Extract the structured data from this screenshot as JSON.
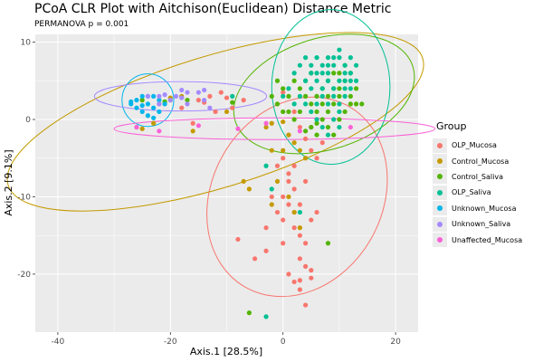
{
  "chart_data": {
    "type": "scatter",
    "title": "PCoA CLR Plot with Aitchison(Euclidean) Distance Metric",
    "subtitle": "PERMANOVA p = 0.001",
    "xlabel": "Axis.1   [28.5%]",
    "ylabel": "Axis.2   [9.1%]",
    "xlim": [
      -44,
      24
    ],
    "ylim": [
      -27.5,
      11
    ],
    "xticks": [
      -40,
      -20,
      0,
      20
    ],
    "yticks": [
      -20,
      -10,
      0,
      10
    ],
    "xtick_labels": [
      "-40",
      "-20",
      "0",
      "20"
    ],
    "ytick_labels": [
      "-20",
      "-10",
      "0",
      "10"
    ],
    "legend_title": "Group",
    "legend_position": "right",
    "series": [
      {
        "name": "OLP_Mucosa",
        "color": "#F8766D",
        "ellipse": {
          "cx": 2.5,
          "cy": -10,
          "rx": 18.5,
          "ry": 11,
          "angle": 120
        },
        "points": [
          [
            -18,
            1.5
          ],
          [
            -15,
            2.5
          ],
          [
            -14,
            2.2
          ],
          [
            -11,
            3.5
          ],
          [
            -9,
            1.5
          ],
          [
            -7,
            2.5
          ],
          [
            -12,
            1
          ],
          [
            -16,
            -0.5
          ],
          [
            -13,
            3
          ],
          [
            -10,
            2.8
          ],
          [
            0,
            3.5
          ],
          [
            1,
            -2
          ],
          [
            2,
            1
          ],
          [
            3,
            -1
          ],
          [
            4,
            -2.5
          ],
          [
            5,
            -1
          ],
          [
            0,
            -5
          ],
          [
            -1,
            -6
          ],
          [
            1,
            -7
          ],
          [
            2,
            -9
          ],
          [
            -2,
            -10
          ],
          [
            -1,
            -12
          ],
          [
            0,
            -13
          ],
          [
            1,
            -11
          ],
          [
            2,
            -14
          ],
          [
            3,
            -15
          ],
          [
            4,
            -16
          ],
          [
            5,
            -13
          ],
          [
            3,
            -18
          ],
          [
            4,
            -19
          ],
          [
            5,
            -19.5
          ],
          [
            5,
            -20.5
          ],
          [
            3,
            -22
          ],
          [
            2,
            -21
          ],
          [
            1,
            -20
          ],
          [
            0,
            -16
          ],
          [
            -3,
            -14
          ],
          [
            -8,
            -15.5
          ],
          [
            -5,
            -18
          ],
          [
            -3,
            -17
          ],
          [
            0,
            -10
          ],
          [
            1,
            -8
          ],
          [
            2,
            -6
          ],
          [
            4,
            -8
          ],
          [
            5,
            -4
          ],
          [
            6,
            -5
          ],
          [
            7,
            -3
          ],
          [
            2,
            -12
          ],
          [
            3,
            -11
          ],
          [
            4,
            -24
          ],
          [
            3,
            -20.8
          ],
          [
            6,
            -12
          ]
        ]
      },
      {
        "name": "Control_Mucosa",
        "color": "#C49A00",
        "ellipse": {
          "cx": -12,
          "cy": -0.3,
          "rx": 38.5,
          "ry": 8.5,
          "angle": -17
        },
        "points": [
          [
            -26,
            -1
          ],
          [
            -25,
            -1.2
          ],
          [
            -23,
            -0.5
          ],
          [
            -22,
            2
          ],
          [
            -20,
            2.5
          ],
          [
            -18,
            3
          ],
          [
            -16,
            -1.5
          ],
          [
            -10,
            1
          ],
          [
            -7,
            -8
          ],
          [
            -6,
            -9
          ],
          [
            -3,
            -1
          ],
          [
            -2,
            -0.5
          ],
          [
            0,
            -0.3
          ],
          [
            1,
            -2
          ],
          [
            2,
            -3
          ],
          [
            3,
            -4
          ],
          [
            4,
            -5
          ],
          [
            0,
            -4
          ],
          [
            -1,
            -8
          ],
          [
            -2,
            -11
          ],
          [
            1,
            -10
          ],
          [
            2,
            -12
          ],
          [
            3,
            -14
          ],
          [
            -2,
            -4
          ],
          [
            -20,
            2.8
          ]
        ]
      },
      {
        "name": "Control_Saliva",
        "color": "#53B400",
        "ellipse": {
          "cx": 7.3,
          "cy": 3.3,
          "rx": 16.5,
          "ry": 7.2,
          "angle": -17
        },
        "points": [
          [
            -1,
            5
          ],
          [
            0,
            4
          ],
          [
            1,
            3
          ],
          [
            2,
            5
          ],
          [
            3,
            4
          ],
          [
            4,
            5
          ],
          [
            5,
            6
          ],
          [
            6,
            3
          ],
          [
            7,
            4
          ],
          [
            8,
            5
          ],
          [
            9,
            6
          ],
          [
            10,
            4
          ],
          [
            11,
            5
          ],
          [
            12,
            3
          ],
          [
            13,
            2
          ],
          [
            14,
            2
          ],
          [
            4,
            3
          ],
          [
            5,
            2
          ],
          [
            6,
            1
          ],
          [
            7,
            2
          ],
          [
            8,
            1
          ],
          [
            9,
            2
          ],
          [
            10,
            3
          ],
          [
            11,
            1
          ],
          [
            12,
            2
          ],
          [
            3,
            1
          ],
          [
            2,
            0
          ],
          [
            1,
            1
          ],
          [
            0,
            1
          ],
          [
            5,
            -1
          ],
          [
            6,
            -2
          ],
          [
            7,
            0
          ],
          [
            8,
            -1
          ],
          [
            9,
            -2
          ],
          [
            8,
            3
          ],
          [
            9,
            4
          ],
          [
            10,
            6
          ],
          [
            11,
            7
          ],
          [
            12,
            6
          ],
          [
            13,
            4
          ],
          [
            -2,
            3
          ],
          [
            -1,
            2
          ],
          [
            4,
            -1.5
          ],
          [
            6,
            -0.5
          ],
          [
            10,
            0
          ],
          [
            -17,
            2.5
          ],
          [
            -21,
            2.3
          ],
          [
            -9,
            2.2
          ],
          [
            -25,
            2.5
          ],
          [
            -6,
            -25
          ],
          [
            8,
            -16
          ]
        ]
      },
      {
        "name": "OLP_Saliva",
        "color": "#00C094",
        "ellipse": {
          "cx": 8.5,
          "cy": 4.2,
          "rx": 10.5,
          "ry": 10,
          "angle": 0
        },
        "points": [
          [
            2,
            6
          ],
          [
            3,
            7
          ],
          [
            4,
            8
          ],
          [
            5,
            7
          ],
          [
            6,
            8
          ],
          [
            7,
            7
          ],
          [
            8,
            6
          ],
          [
            9,
            7
          ],
          [
            10,
            8
          ],
          [
            11,
            7
          ],
          [
            12,
            6
          ],
          [
            13,
            7
          ],
          [
            4,
            5
          ],
          [
            5,
            4
          ],
          [
            6,
            5
          ],
          [
            7,
            4
          ],
          [
            8,
            5
          ],
          [
            9,
            4
          ],
          [
            10,
            5
          ],
          [
            11,
            4
          ],
          [
            12,
            5
          ],
          [
            3,
            3
          ],
          [
            4,
            2
          ],
          [
            5,
            1
          ],
          [
            6,
            2
          ],
          [
            7,
            3
          ],
          [
            8,
            2
          ],
          [
            9,
            3
          ],
          [
            10,
            2
          ],
          [
            11,
            3
          ],
          [
            12,
            4
          ],
          [
            13,
            5
          ],
          [
            2,
            2
          ],
          [
            1,
            4
          ],
          [
            0,
            3
          ],
          [
            6,
            0
          ],
          [
            7,
            -1
          ],
          [
            8,
            -2
          ],
          [
            9,
            0
          ],
          [
            10,
            1
          ],
          [
            11,
            6
          ],
          [
            12,
            8
          ],
          [
            10,
            9
          ],
          [
            8,
            8
          ],
          [
            5,
            6
          ],
          [
            6,
            6
          ],
          [
            7,
            6
          ],
          [
            8,
            7
          ],
          [
            9,
            8
          ],
          [
            11,
            5
          ],
          [
            -3,
            -6
          ],
          [
            -2,
            -9
          ],
          [
            3,
            -12
          ],
          [
            -3,
            -25.5
          ],
          [
            -9,
            3
          ],
          [
            10,
            -1
          ]
        ]
      },
      {
        "name": "Unknown_Mucosa",
        "color": "#00B6EB",
        "ellipse": {
          "cx": -24,
          "cy": 2.5,
          "rx": 4.6,
          "ry": 3.4,
          "angle": 0
        },
        "points": [
          [
            -27,
            2
          ],
          [
            -26,
            2.5
          ],
          [
            -25,
            3
          ],
          [
            -24,
            2
          ],
          [
            -23,
            1.5
          ],
          [
            -22,
            2.5
          ],
          [
            -26,
            1.5
          ],
          [
            -25,
            1
          ],
          [
            -24,
            3
          ],
          [
            -23,
            3
          ],
          [
            -22,
            1
          ],
          [
            -21,
            2
          ],
          [
            -24,
            0.5
          ],
          [
            -23,
            0.2
          ],
          [
            -27,
            2.3
          ],
          [
            -25,
            1.8
          ]
        ]
      },
      {
        "name": "Unknown_Saliva",
        "color": "#A58AFF",
        "ellipse": {
          "cx": -18.2,
          "cy": 3.0,
          "rx": 15.3,
          "ry": 1.9,
          "angle": 0
        },
        "points": [
          [
            -24,
            3
          ],
          [
            -22,
            3
          ],
          [
            -20,
            2.5
          ],
          [
            -19,
            3
          ],
          [
            -18,
            3.8
          ],
          [
            -17,
            2
          ],
          [
            -15,
            3.5
          ],
          [
            -14,
            3.8
          ],
          [
            -13,
            1.5
          ],
          [
            -22,
            2
          ],
          [
            -18,
            2.8
          ],
          [
            -21,
            3.2
          ],
          [
            -17,
            3.5
          ],
          [
            -14,
            2.5
          ]
        ]
      },
      {
        "name": "Unaffected_Mucosa",
        "color": "#FB61D7",
        "ellipse": {
          "cx": -1.5,
          "cy": -1.2,
          "rx": 28.5,
          "ry": 1.4,
          "angle": 0
        },
        "points": [
          [
            -26,
            -1
          ],
          [
            -22,
            -1.5
          ],
          [
            -15,
            -0.8
          ],
          [
            -8,
            -1.2
          ],
          [
            3,
            -1.5
          ],
          [
            12,
            -1
          ],
          [
            -3,
            -0.5
          ]
        ]
      }
    ]
  }
}
